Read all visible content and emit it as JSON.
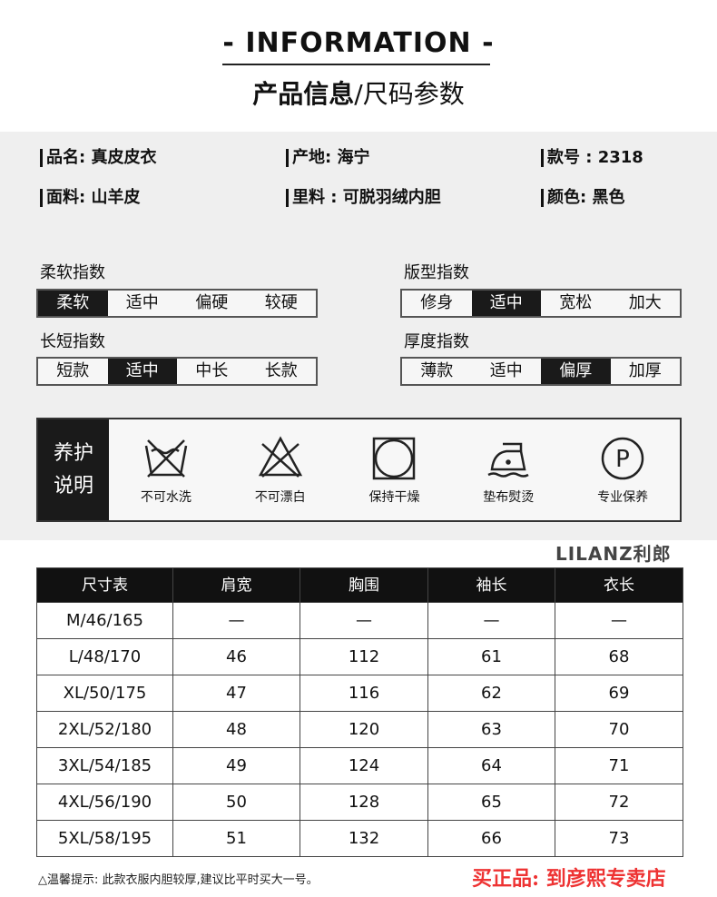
{
  "header": {
    "title_en": "- INFORMATION -",
    "title_cn_bold": "产品信息",
    "title_cn_rest": "/尺码参数"
  },
  "attributes": [
    {
      "label": "品名: 真皮皮衣"
    },
    {
      "label": "产地: 海宁"
    },
    {
      "label": "款号 : 2318"
    },
    {
      "label": "面料: 山羊皮"
    },
    {
      "label": "里料 : 可脱羽绒内胆"
    },
    {
      "label": "颜色: 黑色"
    }
  ],
  "indices": [
    {
      "title": "柔软指数",
      "options": [
        "柔软",
        "适中",
        "偏硬",
        "较硬"
      ],
      "selected": 0
    },
    {
      "title": "版型指数",
      "options": [
        "修身",
        "适中",
        "宽松",
        "加大"
      ],
      "selected": 1
    },
    {
      "title": "长短指数",
      "options": [
        "短款",
        "适中",
        "中长",
        "长款"
      ],
      "selected": 1
    },
    {
      "title": "厚度指数",
      "options": [
        "薄款",
        "适中",
        "偏厚",
        "加厚"
      ],
      "selected": 2
    }
  ],
  "care": {
    "label_line1": "养护",
    "label_line2": "说明",
    "items": [
      {
        "icon": "no-wash-icon",
        "label": "不可水洗"
      },
      {
        "icon": "no-bleach-icon",
        "label": "不可漂白"
      },
      {
        "icon": "keep-dry-icon",
        "label": "保持干燥"
      },
      {
        "icon": "iron-with-cloth-icon",
        "label": "垫布熨烫"
      },
      {
        "icon": "professional-care-icon",
        "label": "专业保养"
      }
    ]
  },
  "size_table": {
    "headers": [
      "尺寸表",
      "肩宽",
      "胸围",
      "袖长",
      "衣长"
    ],
    "rows": [
      [
        "M/46/165",
        "—",
        "—",
        "—",
        "—"
      ],
      [
        "L/48/170",
        "46",
        "112",
        "61",
        "68"
      ],
      [
        "XL/50/175",
        "47",
        "116",
        "62",
        "69"
      ],
      [
        "2XL/52/180",
        "48",
        "120",
        "63",
        "70"
      ],
      [
        "3XL/54/185",
        "49",
        "124",
        "64",
        "71"
      ],
      [
        "4XL/56/190",
        "50",
        "128",
        "65",
        "72"
      ],
      [
        "5XL/58/195",
        "51",
        "132",
        "66",
        "73"
      ]
    ]
  },
  "note": "△温馨提示: 此款衣服内胆较厚,建议比平时买大一号。",
  "watermark": {
    "logo": "LILANZ利郎",
    "store": "买正品: 到彦熙专卖店",
    "store_color": "#e33333"
  }
}
